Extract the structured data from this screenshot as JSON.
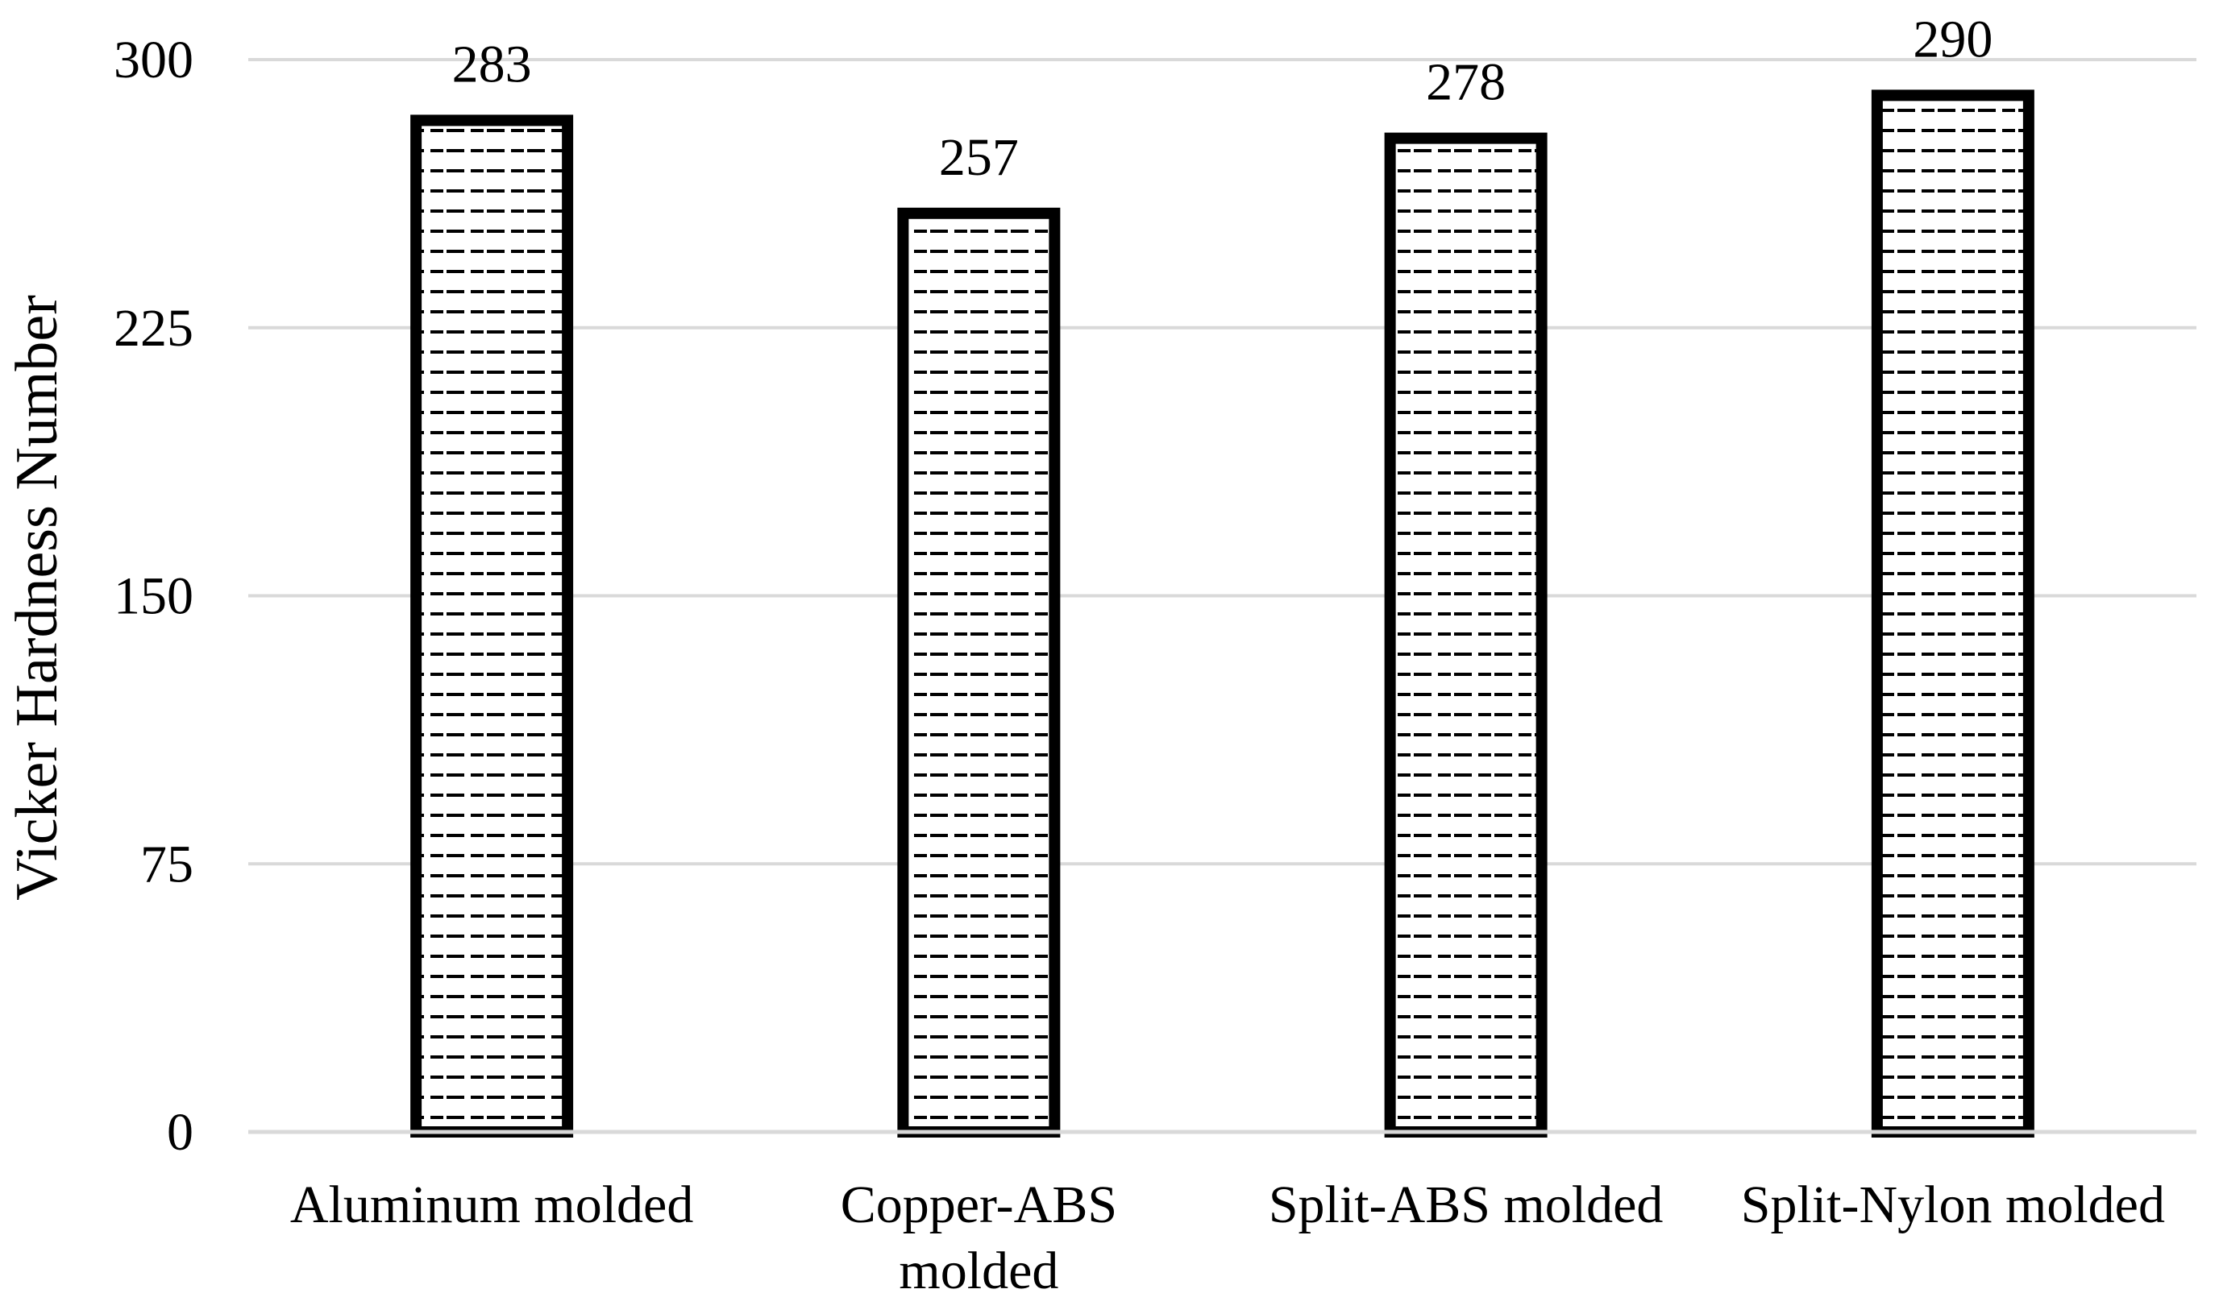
{
  "chart_data": {
    "type": "bar",
    "title": "",
    "xlabel": "",
    "ylabel": "Vicker Hardness Number",
    "ylim": [
      0,
      300
    ],
    "yticks": [
      0,
      75,
      150,
      225,
      300
    ],
    "grid": true,
    "legend": "none",
    "categories": [
      [
        "Aluminum molded"
      ],
      [
        "Copper-ABS",
        "molded"
      ],
      [
        "Split-ABS molded"
      ],
      [
        "Split-Nylon molded"
      ]
    ],
    "values": [
      283,
      257,
      278,
      290
    ],
    "data_labels": [
      "283",
      "257",
      "278",
      "290"
    ],
    "fill_pattern": "dashed-horizontal",
    "colors": {
      "bar_outline": "#000000",
      "bar_fill": "#ffffff",
      "pattern": "#000000",
      "grid": "#d9d9d9"
    }
  }
}
